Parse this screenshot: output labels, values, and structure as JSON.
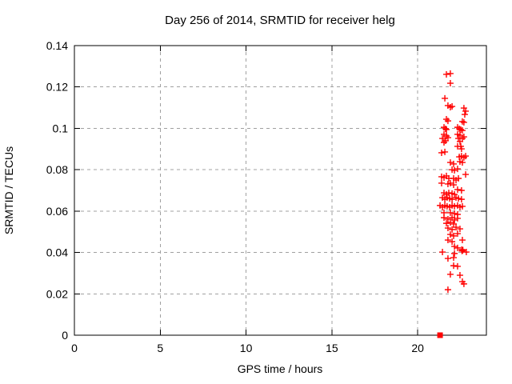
{
  "page": {
    "background": "#ffffff"
  },
  "chart_data": {
    "type": "scatter",
    "title": "Day 256 of 2014, SRMTID for receiver helg",
    "xlabel": "GPS time / hours",
    "ylabel": "SRMTID / TECUs",
    "xlim": [
      0,
      24
    ],
    "ylim": [
      0,
      0.14
    ],
    "xticks": [
      0,
      5,
      10,
      15,
      20
    ],
    "xtick_labels": [
      "0",
      "5",
      "10",
      "15",
      "20"
    ],
    "yticks": [
      0,
      0.02,
      0.04,
      0.06,
      0.08,
      0.1,
      0.12,
      0.14
    ],
    "ytick_labels": [
      "0",
      "0.02",
      "0.04",
      "0.06",
      "0.08",
      "0.1",
      "0.12",
      "0.14"
    ],
    "grid": true,
    "grid_style": "dashed",
    "legend_position": "none",
    "colors": {
      "marker": "#ff0000",
      "grid": "#a0a0a0",
      "frame": "#000000",
      "text": "#000000",
      "background": "#ffffff"
    },
    "series": [
      {
        "name": "SRMTID points",
        "marker": "plus",
        "color": "#ff0000",
        "points": [
          [
            21.67,
            0.1261
          ],
          [
            21.9,
            0.1265
          ],
          [
            21.9,
            0.1218
          ],
          [
            21.58,
            0.1145
          ],
          [
            21.76,
            0.111
          ],
          [
            21.9,
            0.1102
          ],
          [
            22.0,
            0.1106
          ],
          [
            22.69,
            0.1098
          ],
          [
            22.79,
            0.1083
          ],
          [
            22.74,
            0.1067
          ],
          [
            21.67,
            0.1044
          ],
          [
            21.76,
            0.1036
          ],
          [
            22.6,
            0.1033
          ],
          [
            22.69,
            0.1029
          ],
          [
            21.53,
            0.1005
          ],
          [
            21.62,
            0.0998
          ],
          [
            21.67,
            0.0994
          ],
          [
            22.32,
            0.1005
          ],
          [
            22.42,
            0.0998
          ],
          [
            22.51,
            0.0994
          ],
          [
            22.6,
            0.099
          ],
          [
            21.53,
            0.0971
          ],
          [
            21.67,
            0.0963
          ],
          [
            21.76,
            0.0955
          ],
          [
            22.32,
            0.0971
          ],
          [
            22.46,
            0.0967
          ],
          [
            22.69,
            0.0959
          ],
          [
            21.44,
            0.0951
          ],
          [
            22.37,
            0.0951
          ],
          [
            22.6,
            0.0951
          ],
          [
            21.62,
            0.094
          ],
          [
            22.46,
            0.0936
          ],
          [
            21.53,
            0.0932
          ],
          [
            22.32,
            0.0913
          ],
          [
            22.51,
            0.0913
          ],
          [
            22.55,
            0.0901
          ],
          [
            21.39,
            0.0882
          ],
          [
            21.58,
            0.0886
          ],
          [
            22.42,
            0.0862
          ],
          [
            22.55,
            0.0866
          ],
          [
            22.69,
            0.0859
          ],
          [
            22.79,
            0.0866
          ],
          [
            21.9,
            0.0835
          ],
          [
            22.09,
            0.0828
          ],
          [
            22.46,
            0.0839
          ],
          [
            22.6,
            0.0835
          ],
          [
            22.0,
            0.08
          ],
          [
            22.14,
            0.0797
          ],
          [
            22.32,
            0.0804
          ],
          [
            22.79,
            0.0777
          ],
          [
            21.39,
            0.0766
          ],
          [
            21.53,
            0.0762
          ],
          [
            21.67,
            0.077
          ],
          [
            21.81,
            0.0758
          ],
          [
            22.09,
            0.0758
          ],
          [
            22.23,
            0.075
          ],
          [
            22.37,
            0.0758
          ],
          [
            21.39,
            0.0735
          ],
          [
            21.76,
            0.0731
          ],
          [
            21.9,
            0.0735
          ],
          [
            22.09,
            0.0727
          ],
          [
            22.32,
            0.0704
          ],
          [
            22.55,
            0.07
          ],
          [
            21.53,
            0.0688
          ],
          [
            21.67,
            0.0681
          ],
          [
            21.81,
            0.0688
          ],
          [
            22.0,
            0.0685
          ],
          [
            22.14,
            0.0681
          ],
          [
            21.44,
            0.0665
          ],
          [
            21.58,
            0.0657
          ],
          [
            21.71,
            0.0665
          ],
          [
            21.86,
            0.0661
          ],
          [
            22.0,
            0.0657
          ],
          [
            22.23,
            0.0665
          ],
          [
            22.37,
            0.0661
          ],
          [
            22.55,
            0.0657
          ],
          [
            21.3,
            0.0627
          ],
          [
            21.44,
            0.0619
          ],
          [
            21.58,
            0.0627
          ],
          [
            21.71,
            0.0623
          ],
          [
            21.86,
            0.0619
          ],
          [
            22.0,
            0.0627
          ],
          [
            22.14,
            0.0623
          ],
          [
            22.32,
            0.0627
          ],
          [
            22.46,
            0.0619
          ],
          [
            22.6,
            0.0623
          ],
          [
            21.53,
            0.0592
          ],
          [
            21.9,
            0.0592
          ],
          [
            22.14,
            0.0588
          ],
          [
            22.32,
            0.0584
          ],
          [
            21.53,
            0.0568
          ],
          [
            21.76,
            0.0561
          ],
          [
            22.0,
            0.0568
          ],
          [
            22.14,
            0.0557
          ],
          [
            22.32,
            0.0565
          ],
          [
            21.67,
            0.0541
          ],
          [
            21.9,
            0.0545
          ],
          [
            22.09,
            0.0538
          ],
          [
            21.76,
            0.0518
          ],
          [
            22.0,
            0.0511
          ],
          [
            22.23,
            0.0522
          ],
          [
            22.46,
            0.0514
          ],
          [
            21.9,
            0.0487
          ],
          [
            22.09,
            0.048
          ],
          [
            22.32,
            0.0491
          ],
          [
            21.76,
            0.046
          ],
          [
            22.0,
            0.0452
          ],
          [
            22.6,
            0.046
          ],
          [
            22.14,
            0.0429
          ],
          [
            22.32,
            0.0422
          ],
          [
            22.56,
            0.0414
          ],
          [
            22.6,
            0.041
          ],
          [
            22.63,
            0.0412
          ],
          [
            22.58,
            0.0407
          ],
          [
            21.44,
            0.0402
          ],
          [
            22.14,
            0.0395
          ],
          [
            22.83,
            0.0402
          ],
          [
            21.76,
            0.0371
          ],
          [
            22.09,
            0.0375
          ],
          [
            22.09,
            0.0336
          ],
          [
            22.32,
            0.0333
          ],
          [
            21.9,
            0.0294
          ],
          [
            22.46,
            0.029
          ],
          [
            22.6,
            0.0259
          ],
          [
            22.69,
            0.0248
          ],
          [
            21.76,
            0.022
          ]
        ]
      },
      {
        "name": "on-axis marker",
        "marker": "filled-square",
        "color": "#ff0000",
        "points": [
          [
            21.3,
            0.0
          ]
        ]
      }
    ]
  }
}
